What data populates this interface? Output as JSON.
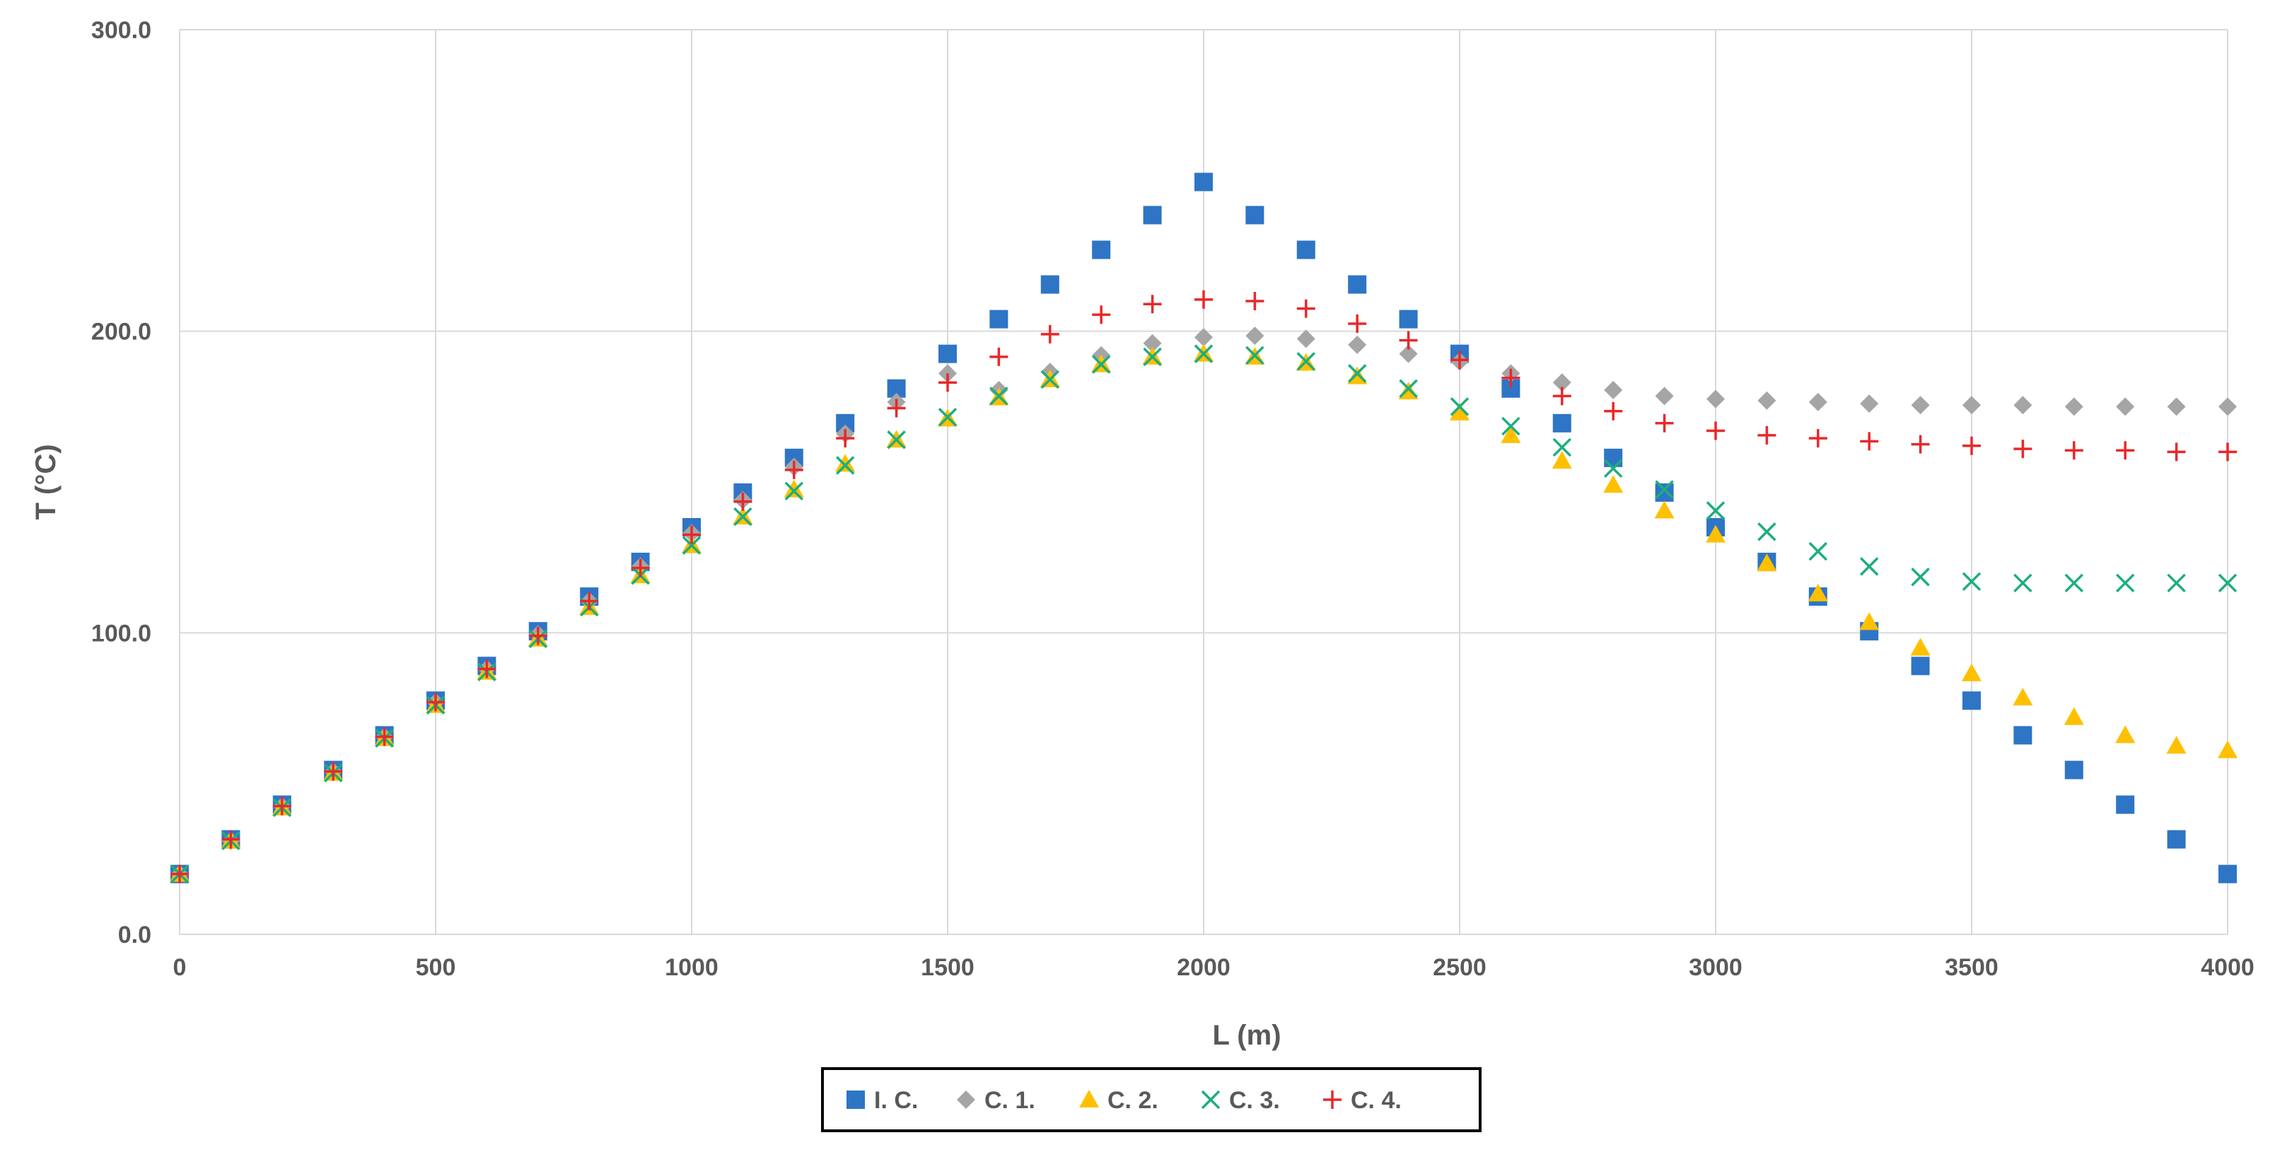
{
  "chart_data": {
    "type": "scatter",
    "title": "",
    "xlabel": "L (m)",
    "ylabel": "T (°C)",
    "xlim": [
      0,
      4000
    ],
    "ylim": [
      0,
      300
    ],
    "x_ticks": [
      "0",
      "500",
      "1000",
      "1500",
      "2000",
      "2500",
      "3000",
      "3500",
      "4000"
    ],
    "y_ticks": [
      "0.0",
      "100.0",
      "200.0",
      "300.0"
    ],
    "grid": true,
    "legend_position": "bottom-center",
    "x": [
      0,
      100,
      200,
      300,
      400,
      500,
      600,
      700,
      800,
      900,
      1000,
      1100,
      1200,
      1300,
      1400,
      1500,
      1600,
      1700,
      1800,
      1900,
      2000,
      2100,
      2200,
      2300,
      2400,
      2500,
      2600,
      2700,
      2800,
      2900,
      3000,
      3100,
      3200,
      3300,
      3400,
      3500,
      3600,
      3700,
      3800,
      3900,
      4000
    ],
    "series": [
      {
        "name": "I. C.",
        "marker": "square",
        "color": "#2E75C6",
        "values": [
          20,
          31.5,
          43,
          54.5,
          66,
          77.5,
          89,
          100.5,
          112,
          123.5,
          135,
          146.5,
          158,
          169.5,
          181,
          192.5,
          204,
          215.5,
          227,
          238.5,
          249.5,
          238.5,
          227,
          215.5,
          204,
          192.5,
          181,
          169.5,
          158,
          146.5,
          135,
          123.5,
          112,
          100.5,
          89,
          77.5,
          66,
          54.5,
          43,
          31.5,
          20
        ]
      },
      {
        "name": "C. 1.",
        "marker": "diamond",
        "color": "#A5A5A5",
        "values": [
          20,
          31,
          42.5,
          54,
          65.5,
          77,
          88,
          99.5,
          110.5,
          122,
          133,
          144,
          155,
          166,
          176.5,
          186,
          180.5,
          186.5,
          192,
          196,
          198,
          198.5,
          197.5,
          195.5,
          192.5,
          190,
          186,
          183,
          180.5,
          178.5,
          177.5,
          177,
          176.5,
          176,
          175.5,
          175.5,
          175.5,
          175,
          175,
          175,
          175
        ]
      },
      {
        "name": "C. 2.",
        "marker": "triangle",
        "color": "#FFC000",
        "values": [
          20,
          31,
          42,
          53.5,
          65,
          76,
          87,
          98,
          108.5,
          119,
          129,
          138.5,
          147.5,
          156,
          164,
          171,
          178,
          184,
          189,
          191.5,
          192.5,
          191.5,
          189.5,
          185,
          180,
          173,
          165.5,
          157,
          149,
          140.5,
          132.5,
          123,
          113,
          103.5,
          95,
          86.5,
          78.5,
          72,
          66,
          62.5,
          61
        ]
      },
      {
        "name": "C. 3.",
        "marker": "x",
        "color": "#1DAE7C",
        "values": [
          20,
          31,
          42,
          53.5,
          65,
          76,
          87,
          98,
          108.5,
          119,
          129,
          138.5,
          147,
          155.5,
          164,
          171.5,
          178.5,
          184,
          189,
          191.5,
          192.5,
          192,
          190,
          186,
          181,
          175,
          168.5,
          161.5,
          154.5,
          147.5,
          140.5,
          133.5,
          127,
          122,
          118.5,
          117,
          116.5,
          116.5,
          116.5,
          116.5,
          116.5
        ]
      },
      {
        "name": "C. 4.",
        "marker": "plus",
        "color": "#E8282B",
        "values": [
          20,
          31.5,
          42.5,
          54,
          65.5,
          77,
          88,
          99,
          110.5,
          121.5,
          132.5,
          143.5,
          154,
          164.5,
          174.5,
          183,
          191.5,
          199,
          205.5,
          209,
          210.5,
          210,
          207.5,
          202.5,
          197,
          190.5,
          184.5,
          178.5,
          173.5,
          169.5,
          167,
          165.5,
          164.5,
          163.5,
          162.5,
          162,
          161,
          160.5,
          160.5,
          160,
          160
        ]
      }
    ]
  }
}
